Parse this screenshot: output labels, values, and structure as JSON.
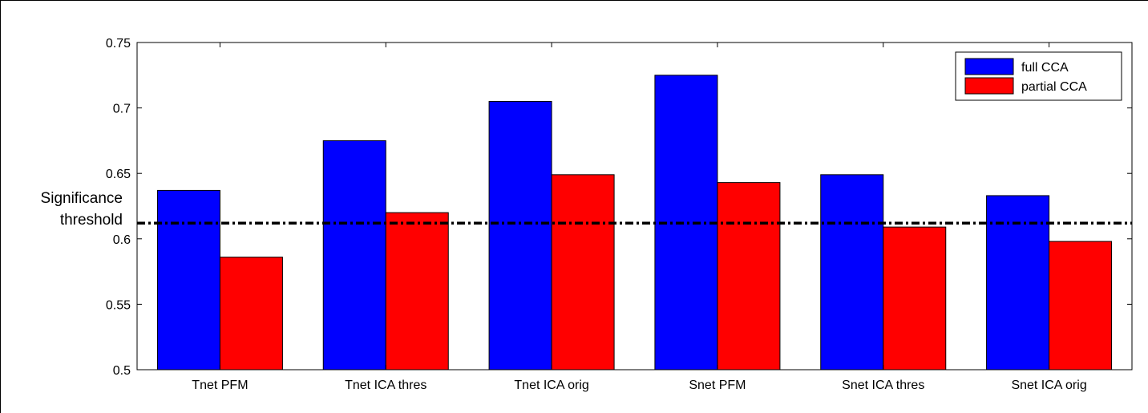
{
  "chart_data": {
    "type": "bar",
    "title": "",
    "xlabel": "",
    "ylabel": "",
    "categories": [
      "Tnet PFM",
      "Tnet ICA thres",
      "Tnet ICA orig",
      "Snet PFM",
      "Snet ICA thres",
      "Snet ICA orig"
    ],
    "series": [
      {
        "name": "full CCA",
        "color": "#0000ff",
        "values": [
          0.637,
          0.675,
          0.705,
          0.725,
          0.649,
          0.633
        ]
      },
      {
        "name": "partial CCA",
        "color": "#ff0000",
        "values": [
          0.586,
          0.62,
          0.649,
          0.643,
          0.609,
          0.598
        ]
      }
    ],
    "ylim": [
      0.5,
      0.75
    ],
    "yticks": [
      0.5,
      0.55,
      0.6,
      0.65,
      0.7,
      0.75
    ],
    "ytick_labels": [
      "0.5",
      "0.55",
      "0.6",
      "0.65",
      "0.7",
      "0.75"
    ],
    "grid": false,
    "legend_position": "top-right",
    "threshold": {
      "value": 0.612,
      "label_line1": "Significance",
      "label_line2": "threshold",
      "style": "dash-dot",
      "color": "#000000"
    }
  }
}
